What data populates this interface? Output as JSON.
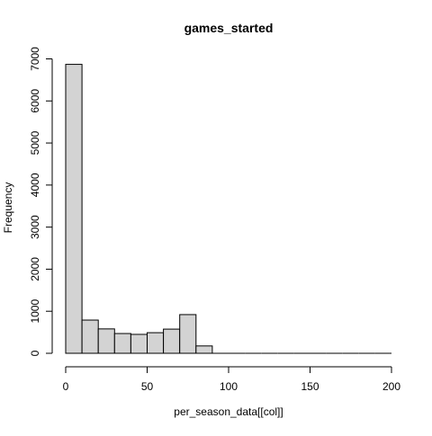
{
  "chart_data": {
    "type": "bar",
    "title": "games_started",
    "xlabel": "per_season_data[[col]]",
    "ylabel": "Frequency",
    "bin_edges": [
      0,
      10,
      20,
      30,
      40,
      50,
      60,
      70,
      80,
      90,
      100,
      110,
      120,
      130,
      140,
      150,
      160,
      170,
      180,
      190,
      200
    ],
    "values": [
      6870,
      790,
      580,
      470,
      450,
      490,
      575,
      920,
      175,
      0,
      0,
      0,
      0,
      0,
      0,
      0,
      0,
      0,
      0,
      0
    ],
    "xlim": [
      0,
      200
    ],
    "ylim": [
      0,
      7000
    ],
    "x_ticks": [
      0,
      50,
      100,
      150,
      200
    ],
    "y_ticks": [
      0,
      1000,
      2000,
      3000,
      4000,
      5000,
      6000,
      7000
    ],
    "grid": false,
    "legend": "none",
    "bar_fill": "#d3d3d3",
    "bar_stroke": "#000000"
  }
}
